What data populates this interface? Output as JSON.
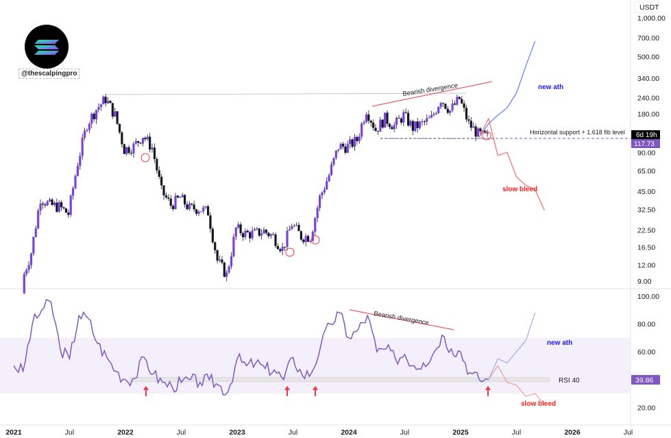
{
  "watermark": {
    "handle": "@thescalpingpro",
    "logo": "solana-logo"
  },
  "colors": {
    "candle": "#7b3fe4",
    "wick": "#131722",
    "rsi": "#7e57c2",
    "bull": "#2962ff",
    "bear": "#f23645",
    "support": "#7e57c2"
  },
  "chart_data": [
    {
      "type": "candlestick",
      "title": "",
      "currency": "USDT",
      "yscale": "log",
      "ylim": [
        8,
        1100
      ],
      "yticks": [
        "1,000.00",
        "700.00",
        "500.00",
        "340.00",
        "240.00",
        "180.00",
        "90.00",
        "65.00",
        "45.00",
        "32.50",
        "22.50",
        "16.50",
        "12.00",
        "9.00"
      ],
      "ytick_values": [
        1000,
        700,
        500,
        340,
        240,
        180,
        90,
        65,
        45,
        32.5,
        22.5,
        16.5,
        12,
        9
      ],
      "last_price": "117.73",
      "countdown": "6d 19h",
      "monthly_close": [
        [
          "2021-02",
          9
        ],
        [
          "2021-03",
          15
        ],
        [
          "2021-04",
          40
        ],
        [
          "2021-05",
          35
        ],
        [
          "2021-06",
          34
        ],
        [
          "2021-07",
          30
        ],
        [
          "2021-08",
          75
        ],
        [
          "2021-09",
          150
        ],
        [
          "2021-10",
          195
        ],
        [
          "2021-11",
          235
        ],
        [
          "2021-12",
          175
        ],
        [
          "2022-01",
          95
        ],
        [
          "2022-02",
          100
        ],
        [
          "2022-03",
          122
        ],
        [
          "2022-04",
          98
        ],
        [
          "2022-05",
          45
        ],
        [
          "2022-06",
          35
        ],
        [
          "2022-07",
          40
        ],
        [
          "2022-08",
          33
        ],
        [
          "2022-09",
          33
        ],
        [
          "2022-10",
          31
        ],
        [
          "2022-11",
          13
        ],
        [
          "2022-12",
          10
        ],
        [
          "2023-01",
          23
        ],
        [
          "2023-02",
          21
        ],
        [
          "2023-03",
          21
        ],
        [
          "2023-04",
          22
        ],
        [
          "2023-05",
          20
        ],
        [
          "2023-06",
          16
        ],
        [
          "2023-07",
          25
        ],
        [
          "2023-08",
          20
        ],
        [
          "2023-09",
          20
        ],
        [
          "2023-10",
          40
        ],
        [
          "2023-11",
          60
        ],
        [
          "2023-12",
          100
        ],
        [
          "2024-01",
          100
        ],
        [
          "2024-02",
          112
        ],
        [
          "2024-03",
          195
        ],
        [
          "2024-04",
          135
        ],
        [
          "2024-05",
          165
        ],
        [
          "2024-06",
          145
        ],
        [
          "2024-07",
          175
        ],
        [
          "2024-08",
          140
        ],
        [
          "2024-09",
          150
        ],
        [
          "2024-10",
          165
        ],
        [
          "2024-11",
          235
        ],
        [
          "2024-12",
          190
        ],
        [
          "2025-01",
          235
        ],
        [
          "2025-02",
          150
        ],
        [
          "2025-03",
          125
        ],
        [
          "2025-04",
          118
        ]
      ],
      "projection_bull": [
        [
          "2025-03",
          118
        ],
        [
          "2025-04",
          150
        ],
        [
          "2025-05",
          175
        ],
        [
          "2025-06",
          200
        ],
        [
          "2025-07",
          260
        ],
        [
          "2025-08",
          420
        ],
        [
          "2025-09",
          660
        ]
      ],
      "projection_bear": [
        [
          "2025-03",
          118
        ],
        [
          "2025-04",
          165
        ],
        [
          "2025-05",
          85
        ],
        [
          "2025-06",
          90
        ],
        [
          "2025-07",
          58
        ],
        [
          "2025-08",
          50
        ],
        [
          "2025-09",
          46
        ],
        [
          "2025-10",
          32
        ]
      ],
      "annotations": {
        "divergence": "Bearish divergence",
        "support": "Horizontal support + 1.618 fib level",
        "bull": "new ath",
        "bear": "slow bleed"
      }
    },
    {
      "type": "line",
      "title": "",
      "ylim": [
        15,
        105
      ],
      "yticks": [
        "100.00",
        "80.00",
        "60.00",
        "20.00"
      ],
      "ytick_values": [
        100,
        80,
        60,
        20
      ],
      "band": [
        30,
        70
      ],
      "last_value": "39.86",
      "rsi": [
        [
          "2021-01",
          50
        ],
        [
          "2021-02",
          46
        ],
        [
          "2021-03",
          80
        ],
        [
          "2021-04",
          90
        ],
        [
          "2021-05",
          96
        ],
        [
          "2021-06",
          62
        ],
        [
          "2021-07",
          55
        ],
        [
          "2021-08",
          86
        ],
        [
          "2021-09",
          84
        ],
        [
          "2021-10",
          66
        ],
        [
          "2021-11",
          56
        ],
        [
          "2021-12",
          46
        ],
        [
          "2022-01",
          40
        ],
        [
          "2022-02",
          41
        ],
        [
          "2022-03",
          56
        ],
        [
          "2022-04",
          44
        ],
        [
          "2022-05",
          38
        ],
        [
          "2022-06",
          35
        ],
        [
          "2022-07",
          38
        ],
        [
          "2022-08",
          40
        ],
        [
          "2022-09",
          38
        ],
        [
          "2022-10",
          40
        ],
        [
          "2022-11",
          36
        ],
        [
          "2022-12",
          31
        ],
        [
          "2023-01",
          55
        ],
        [
          "2023-02",
          50
        ],
        [
          "2023-03",
          52
        ],
        [
          "2023-04",
          48
        ],
        [
          "2023-05",
          47
        ],
        [
          "2023-06",
          40
        ],
        [
          "2023-07",
          56
        ],
        [
          "2023-08",
          43
        ],
        [
          "2023-09",
          45
        ],
        [
          "2023-10",
          65
        ],
        [
          "2023-11",
          80
        ],
        [
          "2023-12",
          88
        ],
        [
          "2024-01",
          70
        ],
        [
          "2024-02",
          76
        ],
        [
          "2024-03",
          86
        ],
        [
          "2024-04",
          60
        ],
        [
          "2024-05",
          62
        ],
        [
          "2024-06",
          55
        ],
        [
          "2024-07",
          58
        ],
        [
          "2024-08",
          50
        ],
        [
          "2024-09",
          52
        ],
        [
          "2024-10",
          58
        ],
        [
          "2024-11",
          72
        ],
        [
          "2024-12",
          62
        ],
        [
          "2025-01",
          60
        ],
        [
          "2025-02",
          45
        ],
        [
          "2025-03",
          40
        ],
        [
          "2025-04",
          40
        ]
      ],
      "projection_bull": [
        [
          "2025-04",
          40
        ],
        [
          "2025-05",
          55
        ],
        [
          "2025-06",
          52
        ],
        [
          "2025-07",
          60
        ],
        [
          "2025-08",
          68
        ],
        [
          "2025-09",
          88
        ]
      ],
      "projection_bear": [
        [
          "2025-04",
          40
        ],
        [
          "2025-05",
          50
        ],
        [
          "2025-06",
          38
        ],
        [
          "2025-07",
          36
        ],
        [
          "2025-08",
          28
        ],
        [
          "2025-09",
          30
        ],
        [
          "2025-10",
          22
        ]
      ],
      "annotations": {
        "divergence": "Bearish divergence",
        "level": "RSI 40",
        "bull": "new ath",
        "bear": "slow bleed"
      }
    }
  ],
  "xaxis": {
    "ticks": [
      [
        "2021",
        "2021-01"
      ],
      [
        "Jul",
        "2021-07"
      ],
      [
        "2022",
        "2022-01"
      ],
      [
        "Jul",
        "2022-07"
      ],
      [
        "2023",
        "2023-01"
      ],
      [
        "Jul",
        "2023-07"
      ],
      [
        "2024",
        "2024-01"
      ],
      [
        "Jul",
        "2024-07"
      ],
      [
        "2025",
        "2025-01"
      ],
      [
        "Jul",
        "2025-07"
      ],
      [
        "2026",
        "2026-01"
      ],
      [
        "Jul",
        "2026-07"
      ]
    ]
  }
}
